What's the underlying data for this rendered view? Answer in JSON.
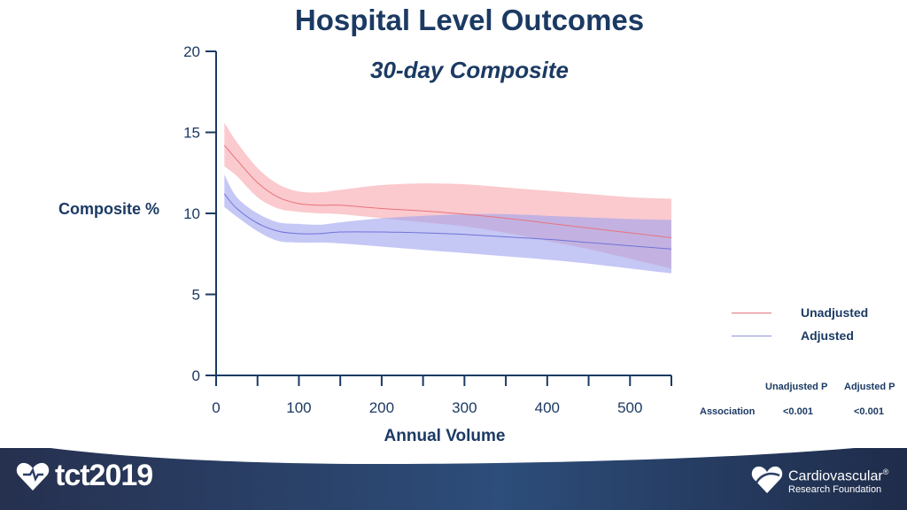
{
  "header": {
    "title": "Hospital Level Outcomes",
    "subtitle": "30-day Composite"
  },
  "chart_data": {
    "type": "area",
    "title": "30-day Composite",
    "xlabel": "Annual Volume",
    "ylabel": "Composite %",
    "xlim": [
      0,
      550
    ],
    "ylim": [
      0,
      20
    ],
    "xticks": [
      0,
      100,
      200,
      300,
      400,
      500
    ],
    "yticks": [
      0,
      5,
      10,
      15,
      20
    ],
    "x": [
      10,
      25,
      50,
      75,
      100,
      125,
      150,
      200,
      250,
      300,
      350,
      400,
      450,
      500,
      550
    ],
    "series": [
      {
        "name": "Unadjusted",
        "color": "#e8737c",
        "band_color": "#f7a7ad",
        "values": [
          14.2,
          13.3,
          11.9,
          11.0,
          10.6,
          10.5,
          10.5,
          10.3,
          10.15,
          9.95,
          9.7,
          9.4,
          9.1,
          8.8,
          8.5
        ],
        "lower": [
          12.9,
          12.3,
          11.0,
          10.3,
          10.1,
          10.0,
          9.95,
          9.7,
          9.45,
          9.2,
          8.8,
          8.3,
          7.8,
          7.2,
          6.6
        ],
        "upper": [
          15.6,
          14.4,
          12.8,
          11.8,
          11.35,
          11.3,
          11.45,
          11.75,
          11.85,
          11.8,
          11.6,
          11.4,
          11.2,
          11.0,
          10.9
        ]
      },
      {
        "name": "Adjusted",
        "color": "#6f73d9",
        "band_color": "#9fa2ee",
        "values": [
          11.2,
          10.3,
          9.4,
          8.9,
          8.75,
          8.75,
          8.85,
          8.85,
          8.8,
          8.7,
          8.55,
          8.4,
          8.2,
          8.0,
          7.8
        ],
        "lower": [
          10.4,
          9.8,
          8.9,
          8.3,
          8.2,
          8.2,
          8.15,
          7.95,
          7.75,
          7.55,
          7.35,
          7.15,
          6.9,
          6.6,
          6.3
        ],
        "upper": [
          12.4,
          11.0,
          10.0,
          9.45,
          9.35,
          9.3,
          9.45,
          9.7,
          9.85,
          9.95,
          9.95,
          9.85,
          9.75,
          9.65,
          9.6
        ]
      }
    ],
    "legend_position": "right"
  },
  "legend": {
    "unadjusted": "Unadjusted",
    "adjusted": "Adjusted"
  },
  "pvalues": {
    "col1": "Unadjusted P",
    "col2": "Adjusted P",
    "row_label": "Association",
    "unadjusted_p": "<0.001",
    "adjusted_p": "<0.001"
  },
  "footer": {
    "tct_logo_text": "tct2019",
    "crf_name": "Cardiovascular",
    "crf_name_sub": "Research Foundation",
    "crf_reg": "®"
  }
}
